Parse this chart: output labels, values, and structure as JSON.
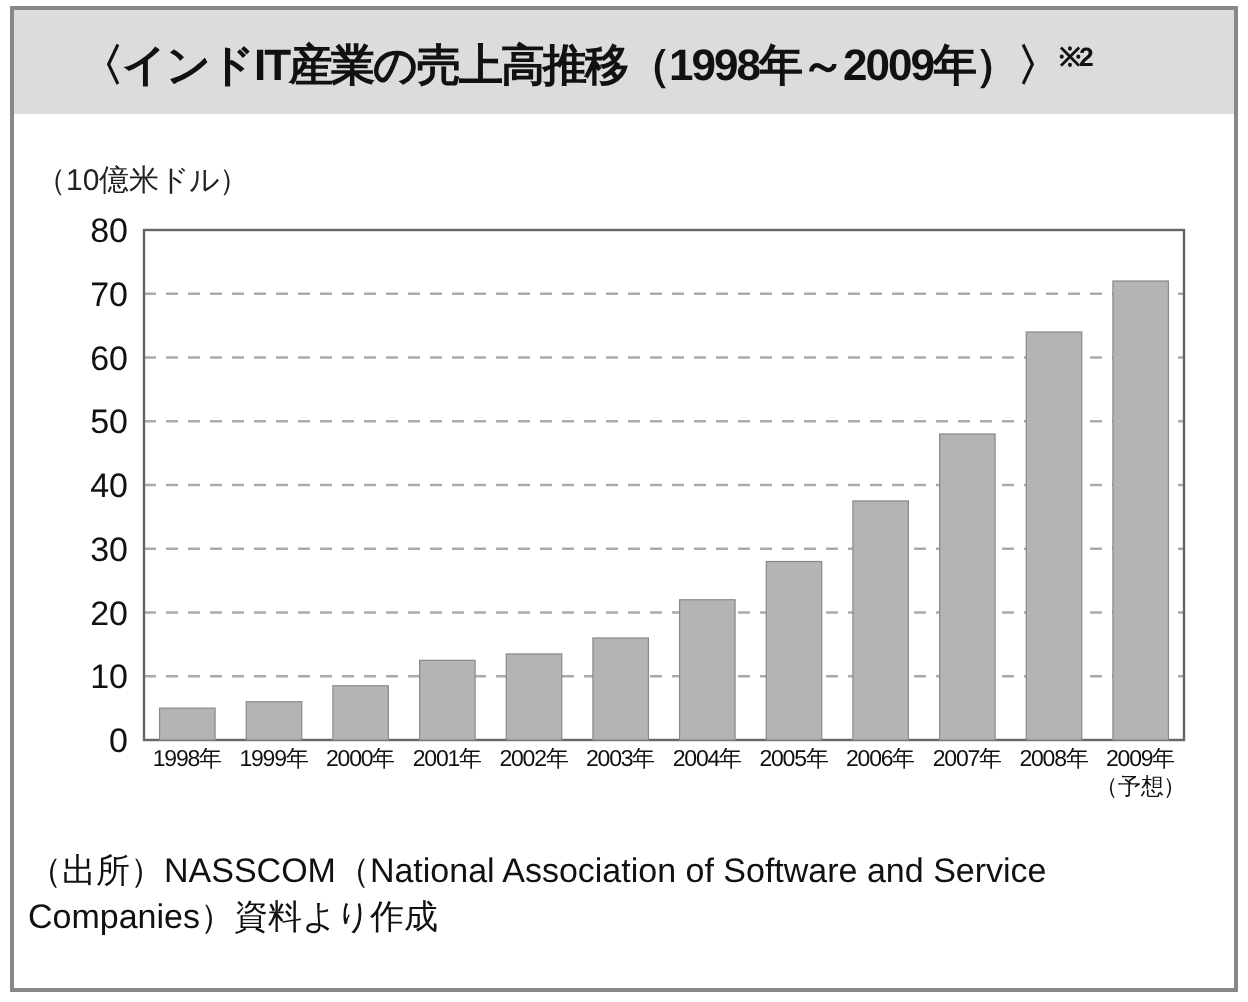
{
  "chart_data": {
    "type": "bar",
    "title": "〈インドIT産業の売上高推移（1998年～2009年）〉$^{※2}$",
    "ylabel": "（10億米ドル）",
    "categories": [
      "1998年",
      "1999年",
      "2000年",
      "2001年",
      "2002年",
      "2003年",
      "2004年",
      "2005年",
      "2006年",
      "2007年",
      "2008年",
      "2009年（予想）"
    ],
    "values": [
      5,
      6,
      8.5,
      12.5,
      13.5,
      16,
      22,
      28,
      37.5,
      48,
      64,
      72
    ],
    "color": "#b4b4b4",
    "ylim": [
      0,
      80
    ],
    "yticks": [
      0,
      10,
      20,
      30,
      40,
      50,
      60,
      70,
      80
    ],
    "grid": "y",
    "annotations": [
      "（出所）NASSCOM（National Association of Software and Service Companies）資料より作成"
    ]
  }
}
